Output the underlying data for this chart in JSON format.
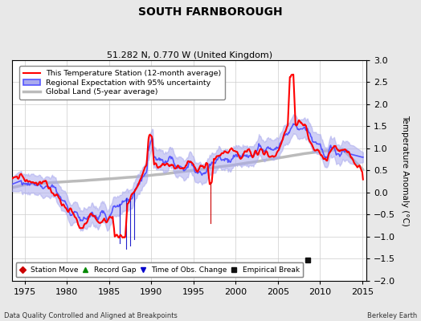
{
  "title": "SOUTH FARNBOROUGH",
  "subtitle": "51.282 N, 0.770 W (United Kingdom)",
  "ylabel": "Temperature Anomaly (°C)",
  "xlabel_left": "Data Quality Controlled and Aligned at Breakpoints",
  "xlabel_right": "Berkeley Earth",
  "ylim": [
    -2,
    3
  ],
  "xlim": [
    1973.5,
    2015.5
  ],
  "yticks": [
    -2,
    -1.5,
    -1,
    -0.5,
    0,
    0.5,
    1,
    1.5,
    2,
    2.5,
    3
  ],
  "xticks": [
    1975,
    1980,
    1985,
    1990,
    1995,
    2000,
    2005,
    2010,
    2015
  ],
  "bg_color": "#e8e8e8",
  "plot_bg_color": "#ffffff",
  "grid_color": "#cccccc",
  "legend_entries": [
    {
      "label": "This Temperature Station (12-month average)",
      "color": "#ff0000",
      "lw": 1.5
    },
    {
      "label": "Regional Expectation with 95% uncertainty",
      "color": "#5555ff",
      "lw": 1.2
    },
    {
      "label": "Global Land (5-year average)",
      "color": "#aaaaaa",
      "lw": 2.5
    }
  ],
  "marker_legend": [
    {
      "marker": "D",
      "color": "#cc0000",
      "label": "Station Move"
    },
    {
      "marker": "^",
      "color": "#008800",
      "label": "Record Gap"
    },
    {
      "marker": "v",
      "color": "#0000cc",
      "label": "Time of Obs. Change"
    },
    {
      "marker": "s",
      "color": "#111111",
      "label": "Empirical Break"
    }
  ],
  "empirical_break_x": 2008.5,
  "empirical_break_y": -1.52,
  "obs_change_x1": 1986.5,
  "obs_change_x2": 1997.0,
  "obs_change_y_top": 0.2,
  "obs_change_y_bot": -1.25
}
